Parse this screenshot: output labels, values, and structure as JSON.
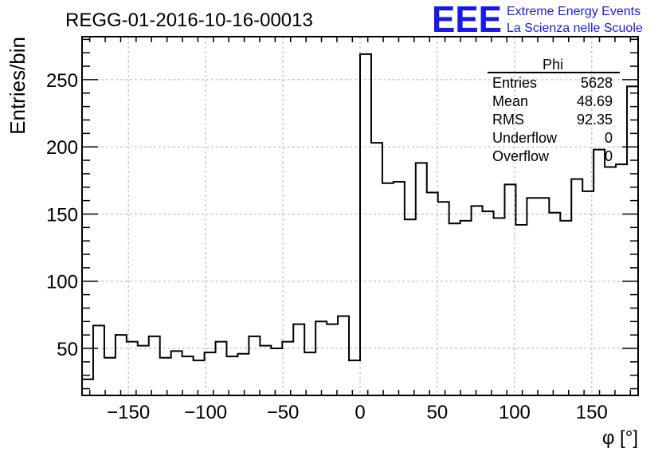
{
  "plot_title": "REGG-01-2016-10-16-00013",
  "logo": {
    "text": "EEE",
    "line1": "Extreme Energy Events",
    "line2": "La Scienza nelle Scuole",
    "color": "#1a1ae6"
  },
  "stats": {
    "name": "Phi",
    "rows": [
      {
        "label": "Entries",
        "value": "5628"
      },
      {
        "label": "Mean",
        "value": "48.69"
      },
      {
        "label": "RMS",
        "value": "92.35"
      },
      {
        "label": "Underflow",
        "value": "0"
      },
      {
        "label": "Overflow",
        "value": "0"
      }
    ]
  },
  "chart_data": {
    "type": "bar",
    "style": "step-histogram",
    "title": "REGG-01-2016-10-16-00013",
    "xlabel": "φ [°]",
    "ylabel": "Entries/bin",
    "xlim": [
      -180,
      180
    ],
    "ylim": [
      15,
      282
    ],
    "grid": true,
    "line_color": "#000000",
    "x_ticks": [
      -150,
      -100,
      -50,
      0,
      50,
      100,
      150
    ],
    "y_ticks": [
      50,
      100,
      150,
      200,
      250
    ],
    "bin_edges": [
      -180,
      -172.8,
      -165.6,
      -158.4,
      -151.2,
      -144,
      -136.8,
      -129.6,
      -122.4,
      -115.2,
      -108,
      -100.8,
      -93.6,
      -86.4,
      -79.2,
      -72,
      -64.8,
      -57.6,
      -50.4,
      -43.2,
      -36,
      -28.8,
      -21.6,
      -14.4,
      -7.2,
      0,
      7.2,
      14.4,
      21.6,
      28.8,
      36,
      43.2,
      50.4,
      57.6,
      64.8,
      72,
      79.2,
      86.4,
      93.6,
      100.8,
      108,
      115.2,
      122.4,
      129.6,
      136.8,
      144,
      151.2,
      158.4,
      165.6,
      172.8,
      180
    ],
    "values": [
      27,
      67,
      43,
      60,
      55,
      52,
      59,
      43,
      48,
      44,
      41,
      47,
      55,
      44,
      46,
      59,
      52,
      50,
      55,
      68,
      47,
      70,
      68,
      74,
      41,
      269,
      203,
      173,
      174,
      146,
      188,
      166,
      159,
      143,
      145,
      156,
      152,
      147,
      172,
      142,
      162,
      162,
      151,
      145,
      176,
      167,
      198,
      185,
      187,
      245
    ]
  }
}
